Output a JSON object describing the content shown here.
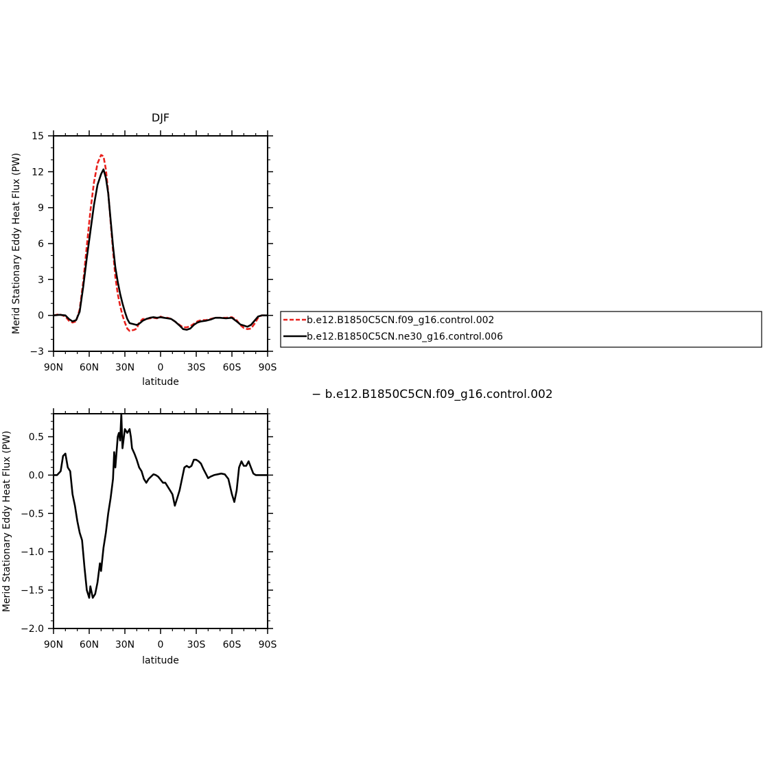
{
  "chart_data": [
    {
      "type": "line",
      "title": "DJF",
      "xlabel": "latitude",
      "ylabel": "Merid Stationary Eddy Heat Flux (PW)",
      "x_ticks": [
        "90N",
        "60N",
        "30N",
        "0",
        "30S",
        "60S",
        "90S"
      ],
      "y_ticks": [
        "15",
        "12",
        "9",
        "6",
        "3",
        "0",
        "−3"
      ],
      "xlim": [
        90,
        -90
      ],
      "ylim": [
        -3,
        15
      ],
      "x_unit": "latitude (degrees, N positive)",
      "grid": false,
      "legend_position": "right of plot",
      "series": [
        {
          "name": "b.e12.B1850C5CN.f09_g16.control.002",
          "color": "#e8201c",
          "dash": "dashed",
          "points": [
            [
              90,
              0
            ],
            [
              85,
              0.1
            ],
            [
              80,
              -0.1
            ],
            [
              77,
              -0.45
            ],
            [
              74,
              -0.6
            ],
            [
              71,
              -0.5
            ],
            [
              68,
              0.5
            ],
            [
              65,
              2.8
            ],
            [
              62,
              5.8
            ],
            [
              59,
              8.7
            ],
            [
              56,
              11.1
            ],
            [
              53,
              12.7
            ],
            [
              50,
              13.4
            ],
            [
              48,
              13.3
            ],
            [
              46,
              12.2
            ],
            [
              44,
              10.3
            ],
            [
              42,
              7.8
            ],
            [
              40,
              5.4
            ],
            [
              38,
              3.2
            ],
            [
              36,
              1.8
            ],
            [
              34,
              0.8
            ],
            [
              32,
              0
            ],
            [
              30,
              -0.6
            ],
            [
              28,
              -1.1
            ],
            [
              26,
              -1.3
            ],
            [
              24,
              -1.25
            ],
            [
              22,
              -1.2
            ],
            [
              20,
              -1.1
            ],
            [
              18,
              -0.6
            ],
            [
              15,
              -0.3
            ],
            [
              12,
              -0.3
            ],
            [
              9,
              -0.25
            ],
            [
              6,
              -0.2
            ],
            [
              3,
              -0.25
            ],
            [
              0,
              -0.1
            ],
            [
              -3,
              -0.2
            ],
            [
              -6,
              -0.2
            ],
            [
              -9,
              -0.3
            ],
            [
              -12,
              -0.5
            ],
            [
              -16,
              -0.8
            ],
            [
              -19,
              -1.0
            ],
            [
              -22,
              -1.0
            ],
            [
              -25,
              -0.9
            ],
            [
              -28,
              -0.7
            ],
            [
              -31,
              -0.5
            ],
            [
              -34,
              -0.4
            ],
            [
              -38,
              -0.4
            ],
            [
              -42,
              -0.3
            ],
            [
              -46,
              -0.2
            ],
            [
              -50,
              -0.2
            ],
            [
              -55,
              -0.2
            ],
            [
              -60,
              -0.15
            ],
            [
              -64,
              -0.4
            ],
            [
              -67,
              -0.8
            ],
            [
              -70,
              -1.05
            ],
            [
              -73,
              -1.15
            ],
            [
              -76,
              -1.1
            ],
            [
              -79,
              -0.7
            ],
            [
              -82,
              -0.2
            ],
            [
              -85,
              0
            ],
            [
              -90,
              0
            ]
          ]
        },
        {
          "name": "b.e12.B1850C5CN.ne30_g16.control.006",
          "color": "#000000",
          "dash": "solid",
          "points": [
            [
              90,
              0
            ],
            [
              85,
              0.05
            ],
            [
              80,
              0
            ],
            [
              77,
              -0.3
            ],
            [
              74,
              -0.5
            ],
            [
              71,
              -0.4
            ],
            [
              68,
              0.3
            ],
            [
              65,
              2.4
            ],
            [
              62,
              4.8
            ],
            [
              59,
              7.0
            ],
            [
              56,
              9.2
            ],
            [
              53,
              10.9
            ],
            [
              50,
              11.8
            ],
            [
              48,
              12.2
            ],
            [
              46,
              11.5
            ],
            [
              44,
              10.2
            ],
            [
              42,
              8.0
            ],
            [
              40,
              5.8
            ],
            [
              38,
              4.0
            ],
            [
              36,
              2.8
            ],
            [
              34,
              1.8
            ],
            [
              32,
              1.0
            ],
            [
              30,
              0.3
            ],
            [
              28,
              -0.3
            ],
            [
              26,
              -0.65
            ],
            [
              24,
              -0.7
            ],
            [
              22,
              -0.75
            ],
            [
              20,
              -0.8
            ],
            [
              18,
              -0.7
            ],
            [
              15,
              -0.45
            ],
            [
              12,
              -0.3
            ],
            [
              9,
              -0.2
            ],
            [
              6,
              -0.15
            ],
            [
              3,
              -0.2
            ],
            [
              0,
              -0.15
            ],
            [
              -3,
              -0.2
            ],
            [
              -6,
              -0.25
            ],
            [
              -9,
              -0.3
            ],
            [
              -12,
              -0.5
            ],
            [
              -16,
              -0.85
            ],
            [
              -19,
              -1.15
            ],
            [
              -22,
              -1.2
            ],
            [
              -25,
              -1.1
            ],
            [
              -28,
              -0.8
            ],
            [
              -31,
              -0.6
            ],
            [
              -34,
              -0.5
            ],
            [
              -38,
              -0.45
            ],
            [
              -42,
              -0.35
            ],
            [
              -46,
              -0.2
            ],
            [
              -50,
              -0.2
            ],
            [
              -55,
              -0.25
            ],
            [
              -60,
              -0.2
            ],
            [
              -64,
              -0.5
            ],
            [
              -67,
              -0.75
            ],
            [
              -70,
              -0.85
            ],
            [
              -73,
              -0.95
            ],
            [
              -76,
              -0.8
            ],
            [
              -79,
              -0.45
            ],
            [
              -82,
              -0.1
            ],
            [
              -85,
              0
            ],
            [
              -90,
              0
            ]
          ]
        }
      ]
    },
    {
      "type": "line",
      "title": "",
      "xlabel": "latitude",
      "ylabel": "Merid Stationary Eddy Heat Flux (PW)",
      "caption": "− b.e12.B1850C5CN.f09_g16.control.002",
      "x_ticks": [
        "90N",
        "60N",
        "30N",
        "0",
        "30S",
        "60S",
        "90S"
      ],
      "y_ticks": [
        "0.5",
        "0.0",
        "−0.5",
        "−1.0",
        "−1.5",
        "−2.0"
      ],
      "xlim": [
        90,
        -90
      ],
      "ylim": [
        -2.0,
        0.8
      ],
      "x_unit": "latitude (degrees, N positive)",
      "grid": false,
      "series": [
        {
          "color": "#000000",
          "dash": "solid",
          "points": [
            [
              90,
              0
            ],
            [
              87,
              0.0
            ],
            [
              84,
              0.05
            ],
            [
              82,
              0.25
            ],
            [
              80,
              0.28
            ],
            [
              78,
              0.1
            ],
            [
              76,
              0.05
            ],
            [
              74,
              -0.25
            ],
            [
              72,
              -0.4
            ],
            [
              70,
              -0.6
            ],
            [
              68,
              -0.75
            ],
            [
              66,
              -0.85
            ],
            [
              64,
              -1.2
            ],
            [
              62,
              -1.5
            ],
            [
              60,
              -1.6
            ],
            [
              59,
              -1.45
            ],
            [
              57,
              -1.6
            ],
            [
              55,
              -1.55
            ],
            [
              53,
              -1.4
            ],
            [
              51,
              -1.15
            ],
            [
              50,
              -1.25
            ],
            [
              48,
              -0.95
            ],
            [
              46,
              -0.75
            ],
            [
              44,
              -0.5
            ],
            [
              42,
              -0.3
            ],
            [
              40,
              -0.05
            ],
            [
              39,
              0.3
            ],
            [
              38,
              0.1
            ],
            [
              36,
              0.5
            ],
            [
              35,
              0.55
            ],
            [
              34,
              0.45
            ],
            [
              33,
              0.8
            ],
            [
              32,
              0.35
            ],
            [
              30,
              0.6
            ],
            [
              28,
              0.55
            ],
            [
              26,
              0.6
            ],
            [
              25,
              0.5
            ],
            [
              24,
              0.35
            ],
            [
              22,
              0.28
            ],
            [
              20,
              0.2
            ],
            [
              18,
              0.1
            ],
            [
              16,
              0.05
            ],
            [
              14,
              -0.05
            ],
            [
              12,
              -0.1
            ],
            [
              10,
              -0.05
            ],
            [
              8,
              -0.02
            ],
            [
              6,
              0.01
            ],
            [
              4,
              0.0
            ],
            [
              2,
              -0.02
            ],
            [
              0,
              -0.06
            ],
            [
              -2,
              -0.1
            ],
            [
              -4,
              -0.1
            ],
            [
              -6,
              -0.15
            ],
            [
              -8,
              -0.2
            ],
            [
              -10,
              -0.25
            ],
            [
              -12,
              -0.4
            ],
            [
              -14,
              -0.3
            ],
            [
              -16,
              -0.2
            ],
            [
              -18,
              -0.05
            ],
            [
              -20,
              0.1
            ],
            [
              -22,
              0.12
            ],
            [
              -24,
              0.1
            ],
            [
              -26,
              0.12
            ],
            [
              -28,
              0.2
            ],
            [
              -30,
              0.2
            ],
            [
              -32,
              0.18
            ],
            [
              -34,
              0.15
            ],
            [
              -36,
              0.08
            ],
            [
              -38,
              0.02
            ],
            [
              -40,
              -0.04
            ],
            [
              -42,
              -0.02
            ],
            [
              -45,
              0.0
            ],
            [
              -48,
              0.01
            ],
            [
              -51,
              0.02
            ],
            [
              -54,
              0.01
            ],
            [
              -57,
              -0.05
            ],
            [
              -60,
              -0.25
            ],
            [
              -62,
              -0.35
            ],
            [
              -64,
              -0.2
            ],
            [
              -66,
              0.1
            ],
            [
              -68,
              0.18
            ],
            [
              -70,
              0.12
            ],
            [
              -72,
              0.12
            ],
            [
              -74,
              0.18
            ],
            [
              -76,
              0.1
            ],
            [
              -78,
              0.02
            ],
            [
              -80,
              0.0
            ],
            [
              -85,
              0
            ],
            [
              -90,
              0
            ]
          ]
        }
      ]
    }
  ]
}
